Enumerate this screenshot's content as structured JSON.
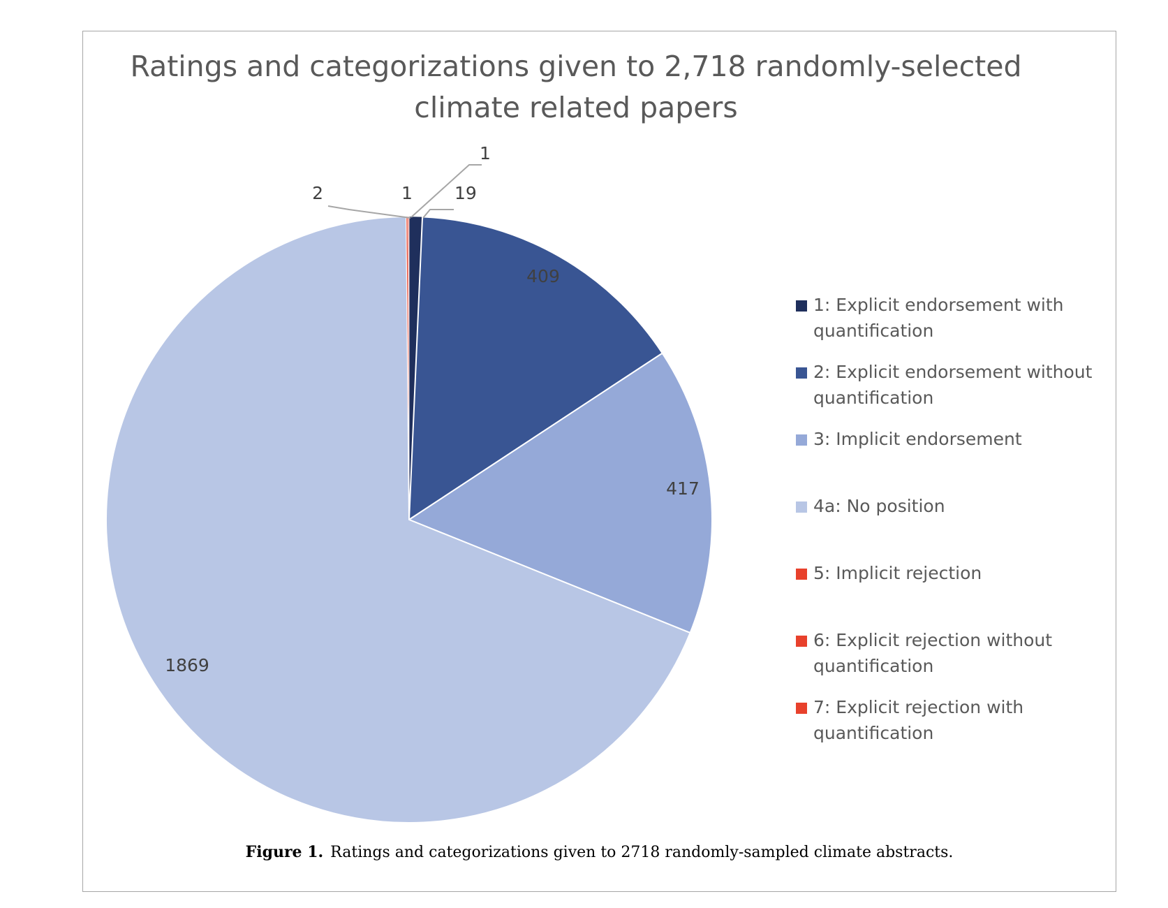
{
  "chart_data": {
    "type": "pie",
    "title_lines": [
      "Ratings and categorizations given to 2,718 randomly-selected",
      "climate related papers"
    ],
    "slices": [
      {
        "label": "1: Explicit endorsement with quantification",
        "legend_lines": [
          "1: Explicit endorsement with",
          "quantification"
        ],
        "value": 19,
        "color": "#1f2f5c"
      },
      {
        "label": "2: Explicit endorsement without quantification",
        "legend_lines": [
          "2: Explicit endorsement without",
          "quantification"
        ],
        "value": 409,
        "color": "#395593"
      },
      {
        "label": "3: Implicit endorsement",
        "legend_lines": [
          "3: Implicit endorsement"
        ],
        "value": 417,
        "color": "#95a9d8"
      },
      {
        "label": "4a: No position",
        "legend_lines": [
          "4a: No position"
        ],
        "value": 1869,
        "color": "#b8c6e5"
      },
      {
        "label": "5: Implicit rejection",
        "legend_lines": [
          "5: Implicit rejection"
        ],
        "value": 2,
        "color": "#e8412c"
      },
      {
        "label": "6: Explicit rejection without quantification",
        "legend_lines": [
          "6: Explicit rejection without",
          "quantification"
        ],
        "value": 1,
        "color": "#e8412c"
      },
      {
        "label": "7: Explicit rejection with quantification",
        "legend_lines": [
          "7: Explicit rejection with",
          "quantification"
        ],
        "value": 1,
        "color": "#e8412c"
      }
    ],
    "data_labels": [
      "19",
      "409",
      "417",
      "1869",
      "2",
      "1",
      "1"
    ],
    "legend_position": "right",
    "start_angle": "12 o'clock",
    "direction": "clockwise"
  },
  "caption": {
    "label": "Figure 1.",
    "text": "Ratings and categorizations given to 2718 randomly-sampled climate abstracts."
  }
}
